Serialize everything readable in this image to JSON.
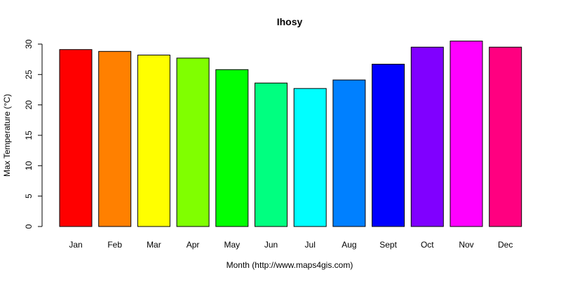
{
  "chart_data": {
    "type": "bar",
    "title": "Ihosy",
    "xlabel": "Month (http://www.maps4gis.com)",
    "ylabel": "Max Temperature (°C)",
    "categories": [
      "Jan",
      "Feb",
      "Mar",
      "Apr",
      "May",
      "Jun",
      "Jul",
      "Aug",
      "Sept",
      "Oct",
      "Nov",
      "Dec"
    ],
    "values": [
      29.1,
      28.8,
      28.2,
      27.7,
      25.8,
      23.6,
      22.7,
      24.1,
      26.7,
      29.5,
      30.5,
      29.5
    ],
    "colors": [
      "#FF0000",
      "#FF8000",
      "#FFFF00",
      "#80FF00",
      "#00FF00",
      "#00FF80",
      "#00FFFF",
      "#0080FF",
      "#0000FF",
      "#8000FF",
      "#FF00FF",
      "#FF0080"
    ],
    "yticks": [
      0,
      5,
      10,
      15,
      20,
      25,
      30
    ],
    "ylim": [
      0,
      30.5
    ],
    "grid": false,
    "legend": "none"
  }
}
